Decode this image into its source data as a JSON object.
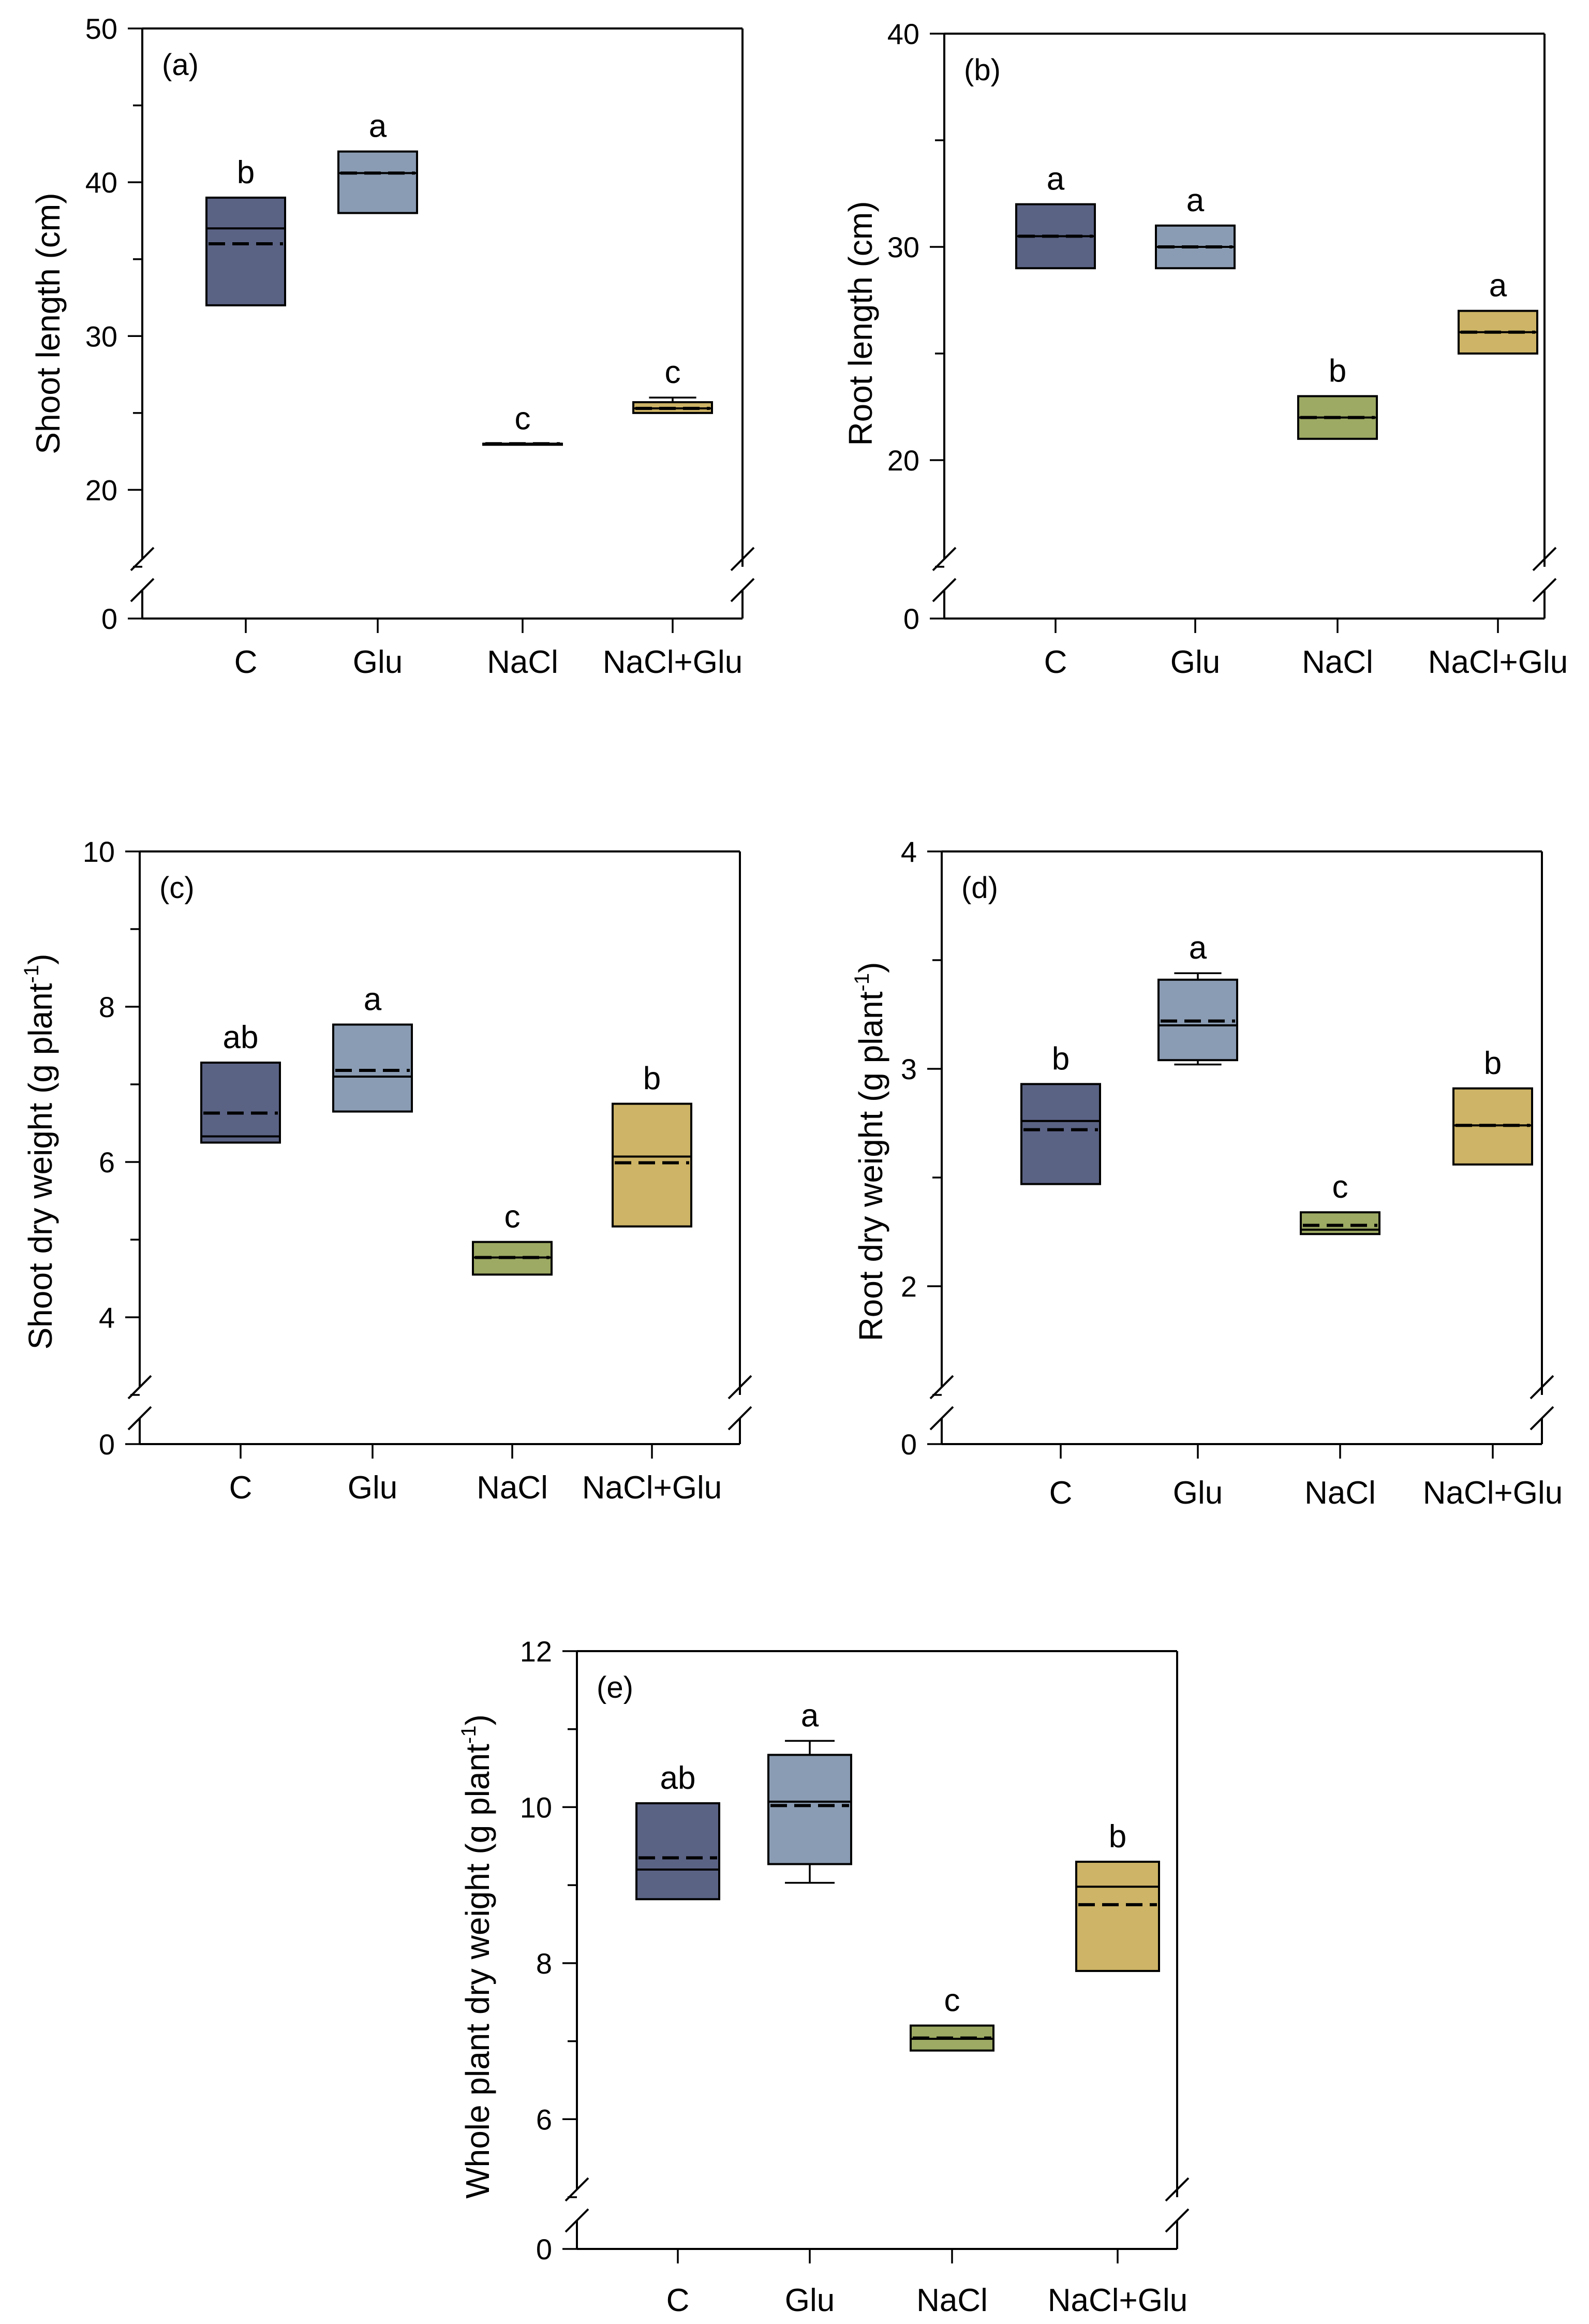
{
  "colors": {
    "C": "#5b6385",
    "Glu": "#8a9cb3",
    "NaCl": "#9caa63",
    "NaCl+Glu": "#cdb466"
  },
  "chart_data": [
    {
      "panel": "(a)",
      "type": "box",
      "ylabel": "Shoot length (cm)",
      "yticks": [
        20,
        30,
        40,
        50
      ],
      "ylim": [
        15,
        50
      ],
      "broken_axis_zero": "0",
      "categories": [
        "C",
        "Glu",
        "NaCl",
        "NaCl+Glu"
      ],
      "boxes": [
        {
          "q1": 32,
          "q3": 39,
          "median": 37,
          "mean": 36,
          "whisker_low": null,
          "whisker_high": null,
          "sig": "b"
        },
        {
          "q1": 38,
          "q3": 42,
          "median": 40.6,
          "mean": 40.6,
          "whisker_low": null,
          "whisker_high": null,
          "sig": "a"
        },
        {
          "q1": 23,
          "q3": 23,
          "median": 23,
          "mean": 23,
          "whisker_low": null,
          "whisker_high": null,
          "sig": "c"
        },
        {
          "q1": 25,
          "q3": 25.7,
          "median": 25.3,
          "mean": 25.3,
          "whisker_low": 25,
          "whisker_high": 26,
          "sig": "c"
        }
      ]
    },
    {
      "panel": "(b)",
      "type": "box",
      "ylabel": "Root length (cm)",
      "yticks": [
        20,
        30,
        40
      ],
      "ylim": [
        15,
        40
      ],
      "broken_axis_zero": "0",
      "categories": [
        "C",
        "Glu",
        "NaCl",
        "NaCl+Glu"
      ],
      "boxes": [
        {
          "q1": 29,
          "q3": 32,
          "median": 30.5,
          "mean": 30.5,
          "whisker_low": null,
          "whisker_high": null,
          "sig": "a"
        },
        {
          "q1": 29,
          "q3": 31,
          "median": 30,
          "mean": 30,
          "whisker_low": null,
          "whisker_high": null,
          "sig": "a"
        },
        {
          "q1": 21,
          "q3": 23,
          "median": 22,
          "mean": 22,
          "whisker_low": null,
          "whisker_high": null,
          "sig": "b"
        },
        {
          "q1": 25,
          "q3": 27,
          "median": 26,
          "mean": 26,
          "whisker_low": null,
          "whisker_high": null,
          "sig": "a"
        }
      ]
    },
    {
      "panel": "(c)",
      "type": "box",
      "ylabel": "Shoot dry weight (g plant",
      "ylabel_sup": "-1",
      "ylabel_end": ")",
      "yticks": [
        4,
        6,
        8,
        10
      ],
      "ylim": [
        3,
        10
      ],
      "broken_axis_zero": "0",
      "categories": [
        "C",
        "Glu",
        "NaCl",
        "NaCl+Glu"
      ],
      "boxes": [
        {
          "q1": 6.25,
          "q3": 7.28,
          "median": 6.33,
          "mean": 6.63,
          "whisker_low": null,
          "whisker_high": null,
          "sig": "ab"
        },
        {
          "q1": 6.65,
          "q3": 7.77,
          "median": 7.1,
          "mean": 7.18,
          "whisker_low": null,
          "whisker_high": null,
          "sig": "a"
        },
        {
          "q1": 4.55,
          "q3": 4.97,
          "median": 4.77,
          "mean": 4.77,
          "whisker_low": null,
          "whisker_high": null,
          "sig": "c"
        },
        {
          "q1": 5.17,
          "q3": 6.75,
          "median": 6.07,
          "mean": 5.99,
          "whisker_low": null,
          "whisker_high": null,
          "sig": "b"
        }
      ]
    },
    {
      "panel": "(d)",
      "type": "box",
      "ylabel": "Root dry weight (g plant",
      "ylabel_sup": "-1",
      "ylabel_end": ")",
      "yticks": [
        2,
        3,
        4
      ],
      "ylim": [
        1.5,
        4
      ],
      "broken_axis_zero": "0",
      "categories": [
        "C",
        "Glu",
        "NaCl",
        "NaCl+Glu"
      ],
      "boxes": [
        {
          "q1": 2.47,
          "q3": 2.93,
          "median": 2.76,
          "mean": 2.72,
          "whisker_low": null,
          "whisker_high": null,
          "sig": "b"
        },
        {
          "q1": 3.04,
          "q3": 3.41,
          "median": 3.2,
          "mean": 3.22,
          "whisker_low": 3.02,
          "whisker_high": 3.44,
          "sig": "a"
        },
        {
          "q1": 2.24,
          "q3": 2.34,
          "median": 2.26,
          "mean": 2.28,
          "whisker_low": null,
          "whisker_high": null,
          "sig": "c"
        },
        {
          "q1": 2.56,
          "q3": 2.91,
          "median": 2.74,
          "mean": 2.74,
          "whisker_low": null,
          "whisker_high": null,
          "sig": "b"
        }
      ]
    },
    {
      "panel": "(e)",
      "type": "box",
      "ylabel": "Whole plant dry weight (g plant",
      "ylabel_sup": "-1",
      "ylabel_end": ")",
      "yticks": [
        6,
        8,
        10,
        12
      ],
      "ylim": [
        5,
        12
      ],
      "broken_axis_zero": "0",
      "categories": [
        "C",
        "Glu",
        "NaCl",
        "NaCl+Glu"
      ],
      "boxes": [
        {
          "q1": 8.82,
          "q3": 10.05,
          "median": 9.2,
          "mean": 9.35,
          "whisker_low": null,
          "whisker_high": null,
          "sig": "ab"
        },
        {
          "q1": 9.27,
          "q3": 10.67,
          "median": 10.07,
          "mean": 10.02,
          "whisker_low": 9.03,
          "whisker_high": 10.85,
          "sig": "a"
        },
        {
          "q1": 6.88,
          "q3": 7.2,
          "median": 7.03,
          "mean": 7.04,
          "whisker_low": null,
          "whisker_high": null,
          "sig": "c"
        },
        {
          "q1": 7.9,
          "q3": 9.3,
          "median": 8.98,
          "mean": 8.75,
          "whisker_low": null,
          "whisker_high": null,
          "sig": "b"
        }
      ]
    }
  ]
}
